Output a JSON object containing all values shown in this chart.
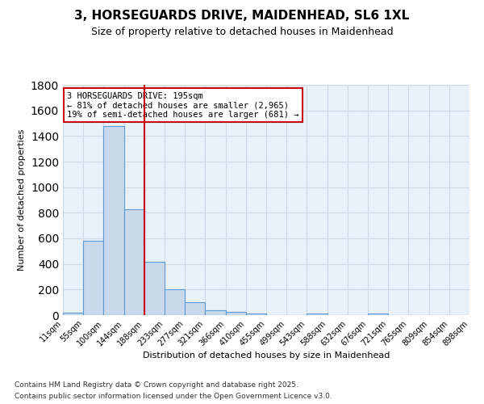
{
  "title": "3, HORSEGUARDS DRIVE, MAIDENHEAD, SL6 1XL",
  "subtitle": "Size of property relative to detached houses in Maidenhead",
  "xlabel": "Distribution of detached houses by size in Maidenhead",
  "ylabel": "Number of detached properties",
  "bin_labels": [
    "11sqm",
    "55sqm",
    "100sqm",
    "144sqm",
    "188sqm",
    "233sqm",
    "277sqm",
    "321sqm",
    "366sqm",
    "410sqm",
    "455sqm",
    "499sqm",
    "543sqm",
    "588sqm",
    "632sqm",
    "676sqm",
    "721sqm",
    "765sqm",
    "809sqm",
    "854sqm",
    "898sqm"
  ],
  "bar_heights": [
    20,
    580,
    1480,
    830,
    420,
    200,
    100,
    35,
    25,
    15,
    0,
    0,
    15,
    0,
    0,
    15,
    0,
    0,
    0,
    0
  ],
  "bar_color": "#c8d9ec",
  "bar_edge_color": "#5b9bd5",
  "grid_color": "#d0d8e8",
  "background_color": "#e8f0f8",
  "property_line_x": 4,
  "property_line_color": "#cc0000",
  "annotation_title": "3 HORSEGUARDS DRIVE: 195sqm",
  "annotation_line1": "← 81% of detached houses are smaller (2,965)",
  "annotation_line2": "19% of semi-detached houses are larger (681) →",
  "annotation_box_color": "#cc0000",
  "footnote1": "Contains HM Land Registry data © Crown copyright and database right 2025.",
  "footnote2": "Contains public sector information licensed under the Open Government Licence v3.0.",
  "ylim": [
    0,
    1800
  ],
  "yticks": [
    0,
    200,
    400,
    600,
    800,
    1000,
    1200,
    1400,
    1600,
    1800
  ]
}
